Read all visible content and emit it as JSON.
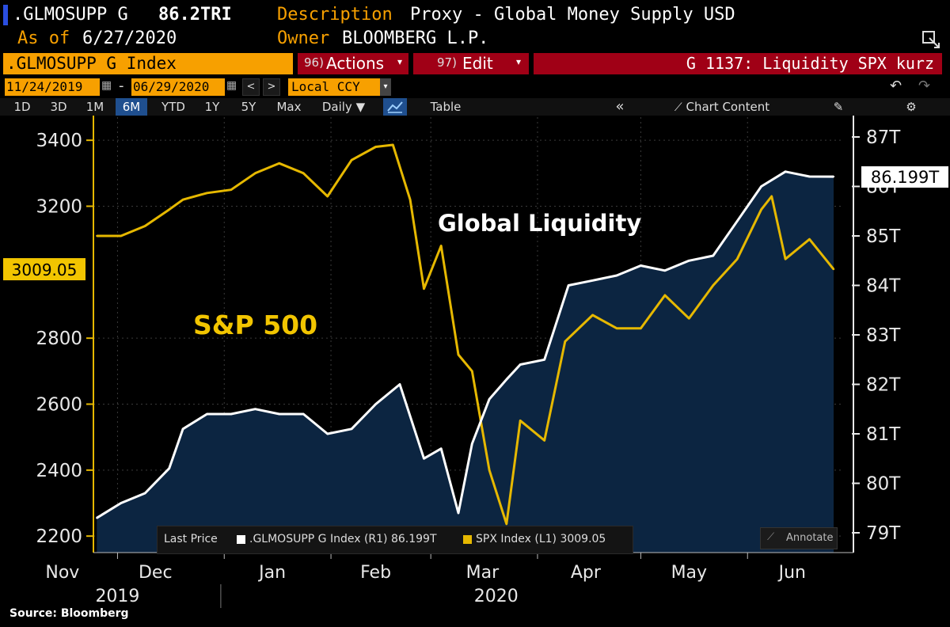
{
  "header": {
    "ticker": ".GLMOSUPP G",
    "last_value": "86.2TRI",
    "description_label": "Description",
    "description_value": "Proxy - Global Money Supply USD",
    "asof_label": "As of",
    "asof_value": "6/27/2020",
    "owner_label": "Owner",
    "owner_value": "BLOOMBERG L.P."
  },
  "toolbar": {
    "security": ".GLMOSUPP G Index",
    "actions_num": "96)",
    "actions_label": "Actions",
    "edit_num": "97)",
    "edit_label": "Edit",
    "chart_title": "G 1137: Liquidity SPX kurz",
    "start_date": "11/24/2019",
    "end_date": "06/29/2020",
    "currency": "Local CCY",
    "table_label": "Table",
    "chart_content_label": "Chart Content",
    "periodicity": "Daily",
    "periods": [
      "1D",
      "3D",
      "1M",
      "6M",
      "YTD",
      "1Y",
      "5Y",
      "Max"
    ],
    "active_period": "6M"
  },
  "colors": {
    "liquidity": "#ffffff",
    "spx": "#e6b800",
    "area": "#0c2541",
    "orange": "#f7a000",
    "red": "#a00016"
  },
  "legend": {
    "last_price": "Last Price",
    "s1": ".GLMOSUPP G Index  (R1) 86.199T",
    "s2": "SPX Index  (L1) 3009.05",
    "annotate": "Annotate"
  },
  "annotations": {
    "global_liquidity": "Global Liquidity",
    "sp500": "S&P 500"
  },
  "source": "Source: Bloomberg",
  "chart_data": {
    "type": "line",
    "title": "G 1137: Liquidity SPX kurz",
    "left_axis": {
      "ticks": [
        "2200",
        "2400",
        "2600",
        "2800",
        "3200",
        "3400"
      ],
      "range": [
        2150,
        3470
      ],
      "last_label": "3009.05"
    },
    "right_axis": {
      "ticks": [
        "79T",
        "80T",
        "81T",
        "82T",
        "83T",
        "84T",
        "85T",
        "86T",
        "87T"
      ],
      "range": [
        78.6,
        87.4
      ],
      "last_label": "86.199T"
    },
    "x_months": [
      "Nov",
      "Dec",
      "Jan",
      "Feb",
      "Mar",
      "Apr",
      "May",
      "Jun"
    ],
    "x_years": [
      "2019",
      "2020"
    ],
    "x_range": [
      "2019-11-24",
      "2020-06-29"
    ],
    "grid": true,
    "series": [
      {
        "name": ".GLMOSUPP G Index",
        "axis": "right",
        "style": "area",
        "x": [
          "2019-11-25",
          "2019-12-02",
          "2019-12-09",
          "2019-12-16",
          "2019-12-20",
          "2019-12-27",
          "2020-01-03",
          "2020-01-10",
          "2020-01-17",
          "2020-01-24",
          "2020-01-31",
          "2020-02-07",
          "2020-02-14",
          "2020-02-21",
          "2020-02-28",
          "2020-03-04",
          "2020-03-09",
          "2020-03-13",
          "2020-03-18",
          "2020-03-23",
          "2020-03-27",
          "2020-04-03",
          "2020-04-10",
          "2020-04-17",
          "2020-04-24",
          "2020-05-01",
          "2020-05-08",
          "2020-05-15",
          "2020-05-22",
          "2020-05-29",
          "2020-06-05",
          "2020-06-12",
          "2020-06-19",
          "2020-06-26"
        ],
        "y": [
          79.3,
          79.6,
          79.8,
          80.3,
          81.1,
          81.4,
          81.4,
          81.5,
          81.4,
          81.4,
          81.0,
          81.1,
          81.6,
          82.0,
          80.5,
          80.7,
          79.4,
          80.8,
          81.7,
          82.1,
          82.4,
          82.5,
          84.0,
          84.1,
          84.2,
          84.4,
          84.3,
          84.5,
          84.6,
          85.3,
          86.0,
          86.3,
          86.2,
          86.199
        ]
      },
      {
        "name": "SPX Index",
        "axis": "left",
        "style": "line",
        "x": [
          "2019-11-25",
          "2019-12-02",
          "2019-12-09",
          "2019-12-16",
          "2019-12-20",
          "2019-12-27",
          "2020-01-03",
          "2020-01-10",
          "2020-01-17",
          "2020-01-24",
          "2020-01-31",
          "2020-02-07",
          "2020-02-14",
          "2020-02-19",
          "2020-02-24",
          "2020-02-28",
          "2020-03-04",
          "2020-03-09",
          "2020-03-13",
          "2020-03-18",
          "2020-03-23",
          "2020-03-27",
          "2020-04-03",
          "2020-04-09",
          "2020-04-17",
          "2020-04-24",
          "2020-05-01",
          "2020-05-08",
          "2020-05-15",
          "2020-05-22",
          "2020-05-29",
          "2020-06-05",
          "2020-06-08",
          "2020-06-12",
          "2020-06-19",
          "2020-06-26"
        ],
        "y": [
          3110,
          3110,
          3140,
          3190,
          3220,
          3240,
          3250,
          3300,
          3330,
          3300,
          3230,
          3340,
          3380,
          3386,
          3220,
          2950,
          3080,
          2750,
          2700,
          2400,
          2237,
          2550,
          2490,
          2790,
          2870,
          2830,
          2830,
          2930,
          2860,
          2960,
          3040,
          3190,
          3230,
          3040,
          3100,
          3009.05
        ]
      }
    ]
  }
}
